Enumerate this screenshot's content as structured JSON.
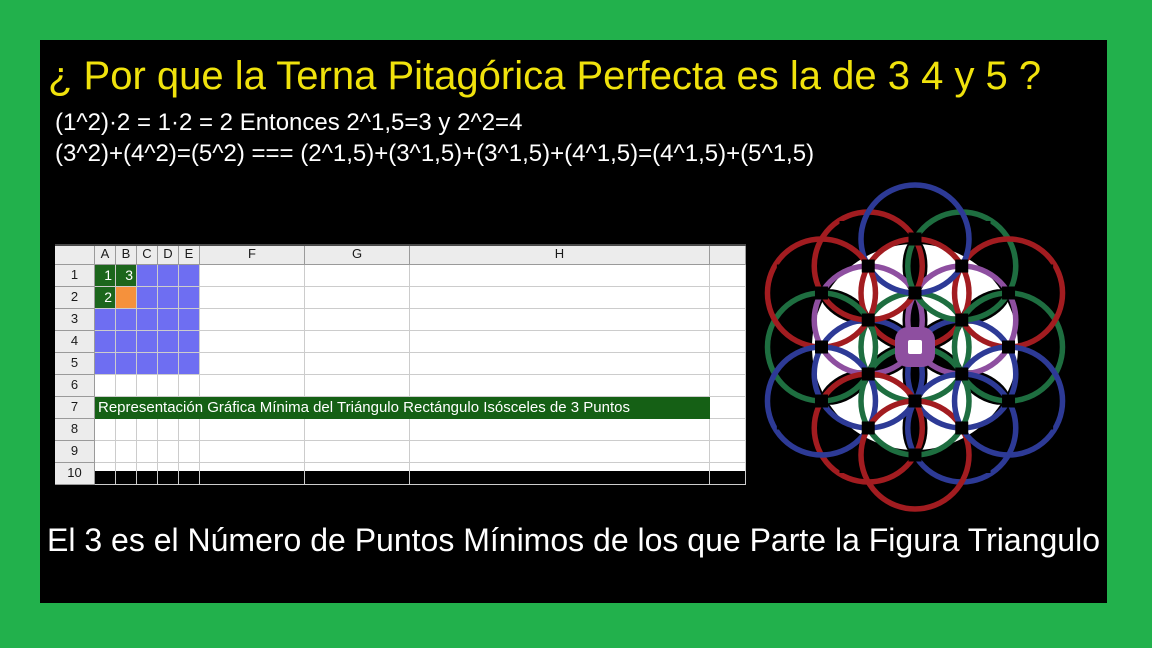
{
  "page": {
    "border_color": "#22b14c",
    "panel_color": "#000000"
  },
  "title": {
    "text": "¿ Por que la Terna Pitagórica Perfecta es la de 3 4 y 5 ?",
    "color": "#f0e20c"
  },
  "formulas": {
    "line1": "(1^2)·2 = 1·2 = 2 Entonces 2^1,5=3 y 2^2=4",
    "line2": "(3^2)+(4^2)=(5^2) === (2^1,5)+(3^1,5)+(3^1,5)+(4^1,5)=(4^1,5)+(5^1,5)",
    "color": "#ffffff"
  },
  "footer": {
    "text": "El 3 es el Número de Puntos Mínimos de los que Parte la Figura Triangulo",
    "color": "#ffffff"
  },
  "spreadsheet": {
    "column_headers": [
      "A",
      "B",
      "C",
      "D",
      "E",
      "F",
      "G",
      "H",
      ""
    ],
    "row_headers": [
      "1",
      "2",
      "3",
      "4",
      "5",
      "6",
      "7",
      "8",
      "9",
      "10"
    ],
    "cells": [
      {
        "ref": "A1",
        "value": "1",
        "bg": "green"
      },
      {
        "ref": "B1",
        "value": "3",
        "bg": "green"
      },
      {
        "ref": "A2",
        "value": "2",
        "bg": "green"
      },
      {
        "ref": "B2",
        "value": "",
        "bg": "orange"
      },
      {
        "ref": "C1",
        "value": "",
        "bg": "blue"
      },
      {
        "ref": "D1",
        "value": "",
        "bg": "blue"
      },
      {
        "ref": "E1",
        "value": "",
        "bg": "blue"
      },
      {
        "ref": "C2",
        "value": "",
        "bg": "blue"
      },
      {
        "ref": "D2",
        "value": "",
        "bg": "blue"
      },
      {
        "ref": "E2",
        "value": "",
        "bg": "blue"
      },
      {
        "ref": "A3",
        "value": "",
        "bg": "blue"
      },
      {
        "ref": "B3",
        "value": "",
        "bg": "blue"
      },
      {
        "ref": "C3",
        "value": "",
        "bg": "blue"
      },
      {
        "ref": "D3",
        "value": "",
        "bg": "blue"
      },
      {
        "ref": "E3",
        "value": "",
        "bg": "blue"
      },
      {
        "ref": "A4",
        "value": "",
        "bg": "blue"
      },
      {
        "ref": "B4",
        "value": "",
        "bg": "blue"
      },
      {
        "ref": "C4",
        "value": "",
        "bg": "blue"
      },
      {
        "ref": "D4",
        "value": "",
        "bg": "blue"
      },
      {
        "ref": "E4",
        "value": "",
        "bg": "blue"
      },
      {
        "ref": "A5",
        "value": "",
        "bg": "blue"
      },
      {
        "ref": "B5",
        "value": "",
        "bg": "blue"
      },
      {
        "ref": "C5",
        "value": "",
        "bg": "blue"
      },
      {
        "ref": "D5",
        "value": "",
        "bg": "blue"
      },
      {
        "ref": "E5",
        "value": "",
        "bg": "blue"
      }
    ],
    "banner": {
      "row": "7",
      "text": "Representación Gráfica Mínima del Triángulo Rectángulo Isósceles de 3 Puntos",
      "bg": "#156015",
      "color": "#ffffff"
    },
    "colors": {
      "green": "#1c661c",
      "orange": "#f5913c",
      "blue": "#6e6ef2",
      "header_bg": "#ececec",
      "grid_line": "#cccccc",
      "header_border": "#9a9a9a",
      "value_text": "#ffffff",
      "header_text": "#1a1a1a",
      "sheet_bg": "#ffffff"
    }
  },
  "flower": {
    "colors": {
      "red": "#a21c20",
      "blue": "#2d3a96",
      "green": "#1e6e40",
      "purple": "#8e4fa0",
      "node": "#000000",
      "center_hole": "#ffffff",
      "backdrop": "#ffffff"
    },
    "circle_radius": 54,
    "stroke_width": 5.5,
    "white_center_radius": 103,
    "rings": [
      {
        "dist": 0,
        "angles": [
          0
        ],
        "colors": [
          "green"
        ]
      },
      {
        "dist": 54,
        "angles": [
          30,
          90,
          150,
          210,
          270,
          330
        ],
        "colors": [
          "purple",
          "red",
          "purple",
          "blue",
          "green",
          "blue"
        ]
      },
      {
        "dist": 93.5,
        "angles": [
          0,
          60,
          120,
          180,
          240,
          300
        ],
        "colors": [
          "green",
          "green",
          "red",
          "green",
          "red",
          "blue"
        ]
      },
      {
        "dist": 108,
        "angles": [
          30,
          90,
          150,
          210,
          270,
          330
        ],
        "colors": [
          "red",
          "blue",
          "red",
          "blue",
          "red",
          "blue"
        ]
      }
    ],
    "outer_nodes": [
      {
        "dist": 138,
        "angles": [
          0,
          60,
          120,
          180,
          240,
          300
        ]
      },
      {
        "dist": 152,
        "angles": [
          30,
          90,
          150,
          210,
          270,
          330
        ]
      }
    ]
  }
}
